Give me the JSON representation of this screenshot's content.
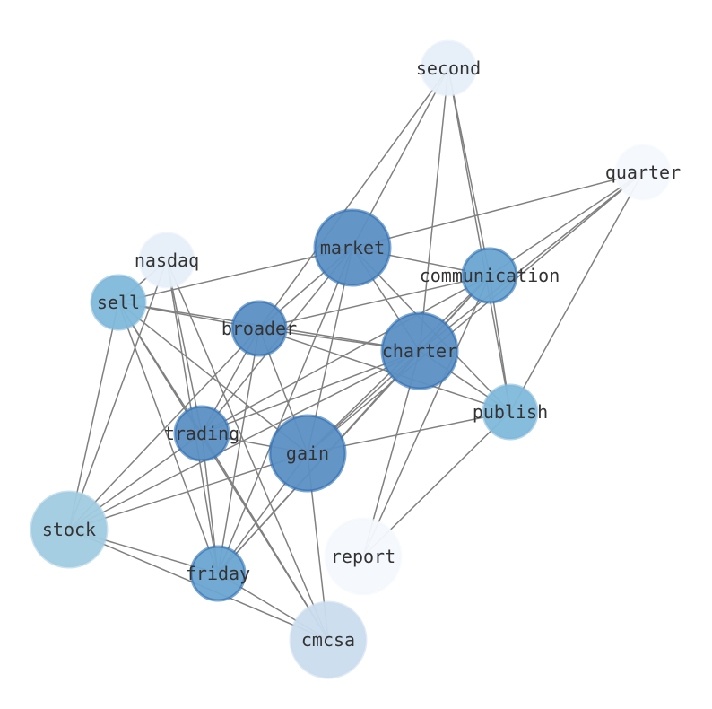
{
  "nodes": [
    {
      "id": "second",
      "label": "second",
      "color": "#e6eff9"
    },
    {
      "id": "quarter",
      "label": "quarter",
      "color": "#f4f8fd"
    },
    {
      "id": "market",
      "label": "market",
      "color": "#5b8fc3"
    },
    {
      "id": "communication",
      "label": "communication",
      "color": "#6aa5d2"
    },
    {
      "id": "nasdaq",
      "label": "nasdaq",
      "color": "#e6eff9"
    },
    {
      "id": "sell",
      "label": "sell",
      "color": "#80b8da"
    },
    {
      "id": "broader",
      "label": "broader",
      "color": "#5b8fc3"
    },
    {
      "id": "charter",
      "label": "charter",
      "color": "#5b8fc3"
    },
    {
      "id": "publish",
      "label": "publish",
      "color": "#80b8da"
    },
    {
      "id": "trading",
      "label": "trading",
      "color": "#5b8fc3"
    },
    {
      "id": "gain",
      "label": "gain",
      "color": "#5b8fc3"
    },
    {
      "id": "stock",
      "label": "stock",
      "color": "#a1cbe2"
    },
    {
      "id": "report",
      "label": "report",
      "color": "#f4f8fd"
    },
    {
      "id": "friday",
      "label": "friday",
      "color": "#6aa5d2"
    },
    {
      "id": "cmcsa",
      "label": "cmcsa",
      "color": "#cadcee"
    }
  ],
  "edges": [
    [
      "second",
      "market"
    ],
    [
      "second",
      "broader"
    ],
    [
      "second",
      "charter"
    ],
    [
      "second",
      "communication"
    ],
    [
      "second",
      "publish"
    ],
    [
      "quarter",
      "market"
    ],
    [
      "quarter",
      "communication"
    ],
    [
      "quarter",
      "charter"
    ],
    [
      "quarter",
      "gain"
    ],
    [
      "quarter",
      "publish"
    ],
    [
      "market",
      "sell"
    ],
    [
      "market",
      "broader"
    ],
    [
      "market",
      "trading"
    ],
    [
      "market",
      "gain"
    ],
    [
      "market",
      "friday"
    ],
    [
      "market",
      "charter"
    ],
    [
      "market",
      "publish"
    ],
    [
      "market",
      "communication"
    ],
    [
      "communication",
      "broader"
    ],
    [
      "communication",
      "charter"
    ],
    [
      "communication",
      "gain"
    ],
    [
      "communication",
      "friday"
    ],
    [
      "communication",
      "trading"
    ],
    [
      "communication",
      "report"
    ],
    [
      "communication",
      "publish"
    ],
    [
      "charter",
      "broader"
    ],
    [
      "charter",
      "sell"
    ],
    [
      "charter",
      "gain"
    ],
    [
      "charter",
      "friday"
    ],
    [
      "charter",
      "report"
    ],
    [
      "charter",
      "trading"
    ],
    [
      "charter",
      "stock"
    ],
    [
      "charter",
      "publish"
    ],
    [
      "sell",
      "nasdaq"
    ],
    [
      "sell",
      "broader"
    ],
    [
      "sell",
      "gain"
    ],
    [
      "sell",
      "trading"
    ],
    [
      "sell",
      "friday"
    ],
    [
      "sell",
      "cmcsa"
    ],
    [
      "sell",
      "stock"
    ],
    [
      "nasdaq",
      "stock"
    ],
    [
      "nasdaq",
      "trading"
    ],
    [
      "nasdaq",
      "friday"
    ],
    [
      "nasdaq",
      "cmcsa"
    ],
    [
      "broader",
      "trading"
    ],
    [
      "broader",
      "friday"
    ],
    [
      "broader",
      "gain"
    ],
    [
      "broader",
      "stock"
    ],
    [
      "broader",
      "publish"
    ],
    [
      "trading",
      "gain"
    ],
    [
      "trading",
      "friday"
    ],
    [
      "trading",
      "cmcsa"
    ],
    [
      "trading",
      "stock"
    ],
    [
      "gain",
      "publish"
    ],
    [
      "gain",
      "stock"
    ],
    [
      "gain",
      "friday"
    ],
    [
      "gain",
      "cmcsa"
    ],
    [
      "stock",
      "friday"
    ],
    [
      "stock",
      "cmcsa"
    ],
    [
      "friday",
      "cmcsa"
    ],
    [
      "publish",
      "report"
    ]
  ],
  "edge_color": "#808080",
  "node_stroke": "#2b6cb0"
}
